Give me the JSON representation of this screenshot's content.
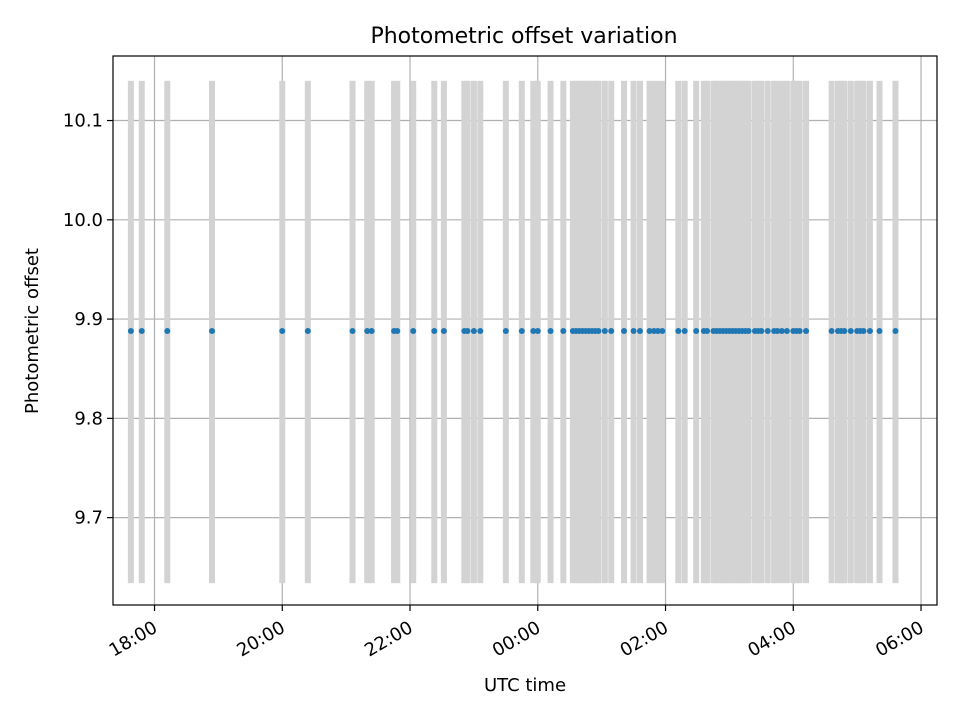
{
  "chart_data": {
    "type": "scatter",
    "title": "Photometric offset variation",
    "xlabel": "UTC time",
    "ylabel": "Photometric offset",
    "x_unit": "UTC hour",
    "xlim": [
      17.35,
      30.25
    ],
    "ylim": [
      9.612,
      10.165
    ],
    "x_ticks": [
      {
        "value": 18,
        "label": "18:00"
      },
      {
        "value": 20,
        "label": "20:00"
      },
      {
        "value": 22,
        "label": "22:00"
      },
      {
        "value": 24,
        "label": "00:00"
      },
      {
        "value": 26,
        "label": "02:00"
      },
      {
        "value": 28,
        "label": "04:00"
      },
      {
        "value": 30,
        "label": "06:00"
      }
    ],
    "y_ticks": [
      {
        "value": 9.7,
        "label": "9.7"
      },
      {
        "value": 9.8,
        "label": "9.8"
      },
      {
        "value": 9.9,
        "label": "9.9"
      },
      {
        "value": 10.0,
        "label": "10.0"
      },
      {
        "value": 10.1,
        "label": "10.1"
      }
    ],
    "grid": true,
    "series": [
      {
        "color": "#1f77b4",
        "y_value": 9.888,
        "x": [
          17.63,
          17.8,
          18.2,
          18.9,
          20.0,
          20.4,
          21.1,
          21.33,
          21.4,
          21.75,
          21.8,
          22.05,
          22.38,
          22.53,
          22.85,
          22.9,
          23.0,
          23.1,
          23.5,
          23.75,
          23.93,
          24.0,
          24.2,
          24.4,
          24.55,
          24.6,
          24.65,
          24.7,
          24.75,
          24.8,
          24.85,
          24.9,
          24.95,
          25.05,
          25.15,
          25.35,
          25.5,
          25.6,
          25.75,
          25.82,
          25.88,
          25.95,
          26.2,
          26.3,
          26.48,
          26.6,
          26.65,
          26.75,
          26.8,
          26.85,
          26.9,
          26.95,
          27.0,
          27.05,
          27.1,
          27.15,
          27.2,
          27.25,
          27.3,
          27.4,
          27.45,
          27.5,
          27.6,
          27.7,
          27.75,
          27.82,
          27.9,
          28.0,
          28.05,
          28.1,
          28.2,
          28.6,
          28.7,
          28.75,
          28.8,
          28.9,
          29.0,
          29.05,
          29.1,
          29.2,
          29.35,
          29.6
        ]
      }
    ],
    "shaded_spans": {
      "color": "#d3d3d3",
      "y_range": [
        9.634,
        10.14
      ],
      "x": [
        17.63,
        17.8,
        18.2,
        18.9,
        20.0,
        20.4,
        21.1,
        21.33,
        21.4,
        21.75,
        21.8,
        22.05,
        22.38,
        22.53,
        22.85,
        22.9,
        23.0,
        23.1,
        23.5,
        23.75,
        23.93,
        24.0,
        24.2,
        24.4,
        24.55,
        24.6,
        24.65,
        24.7,
        24.75,
        24.8,
        24.85,
        24.9,
        24.95,
        25.05,
        25.15,
        25.35,
        25.5,
        25.6,
        25.75,
        25.82,
        25.88,
        25.95,
        26.2,
        26.3,
        26.48,
        26.6,
        26.65,
        26.75,
        26.8,
        26.85,
        26.9,
        26.95,
        27.0,
        27.05,
        27.1,
        27.15,
        27.2,
        27.25,
        27.3,
        27.4,
        27.45,
        27.5,
        27.6,
        27.7,
        27.75,
        27.82,
        27.9,
        28.0,
        28.05,
        28.1,
        28.2,
        28.6,
        28.7,
        28.75,
        28.8,
        28.9,
        29.0,
        29.05,
        29.1,
        29.2,
        29.35,
        29.6
      ]
    }
  }
}
